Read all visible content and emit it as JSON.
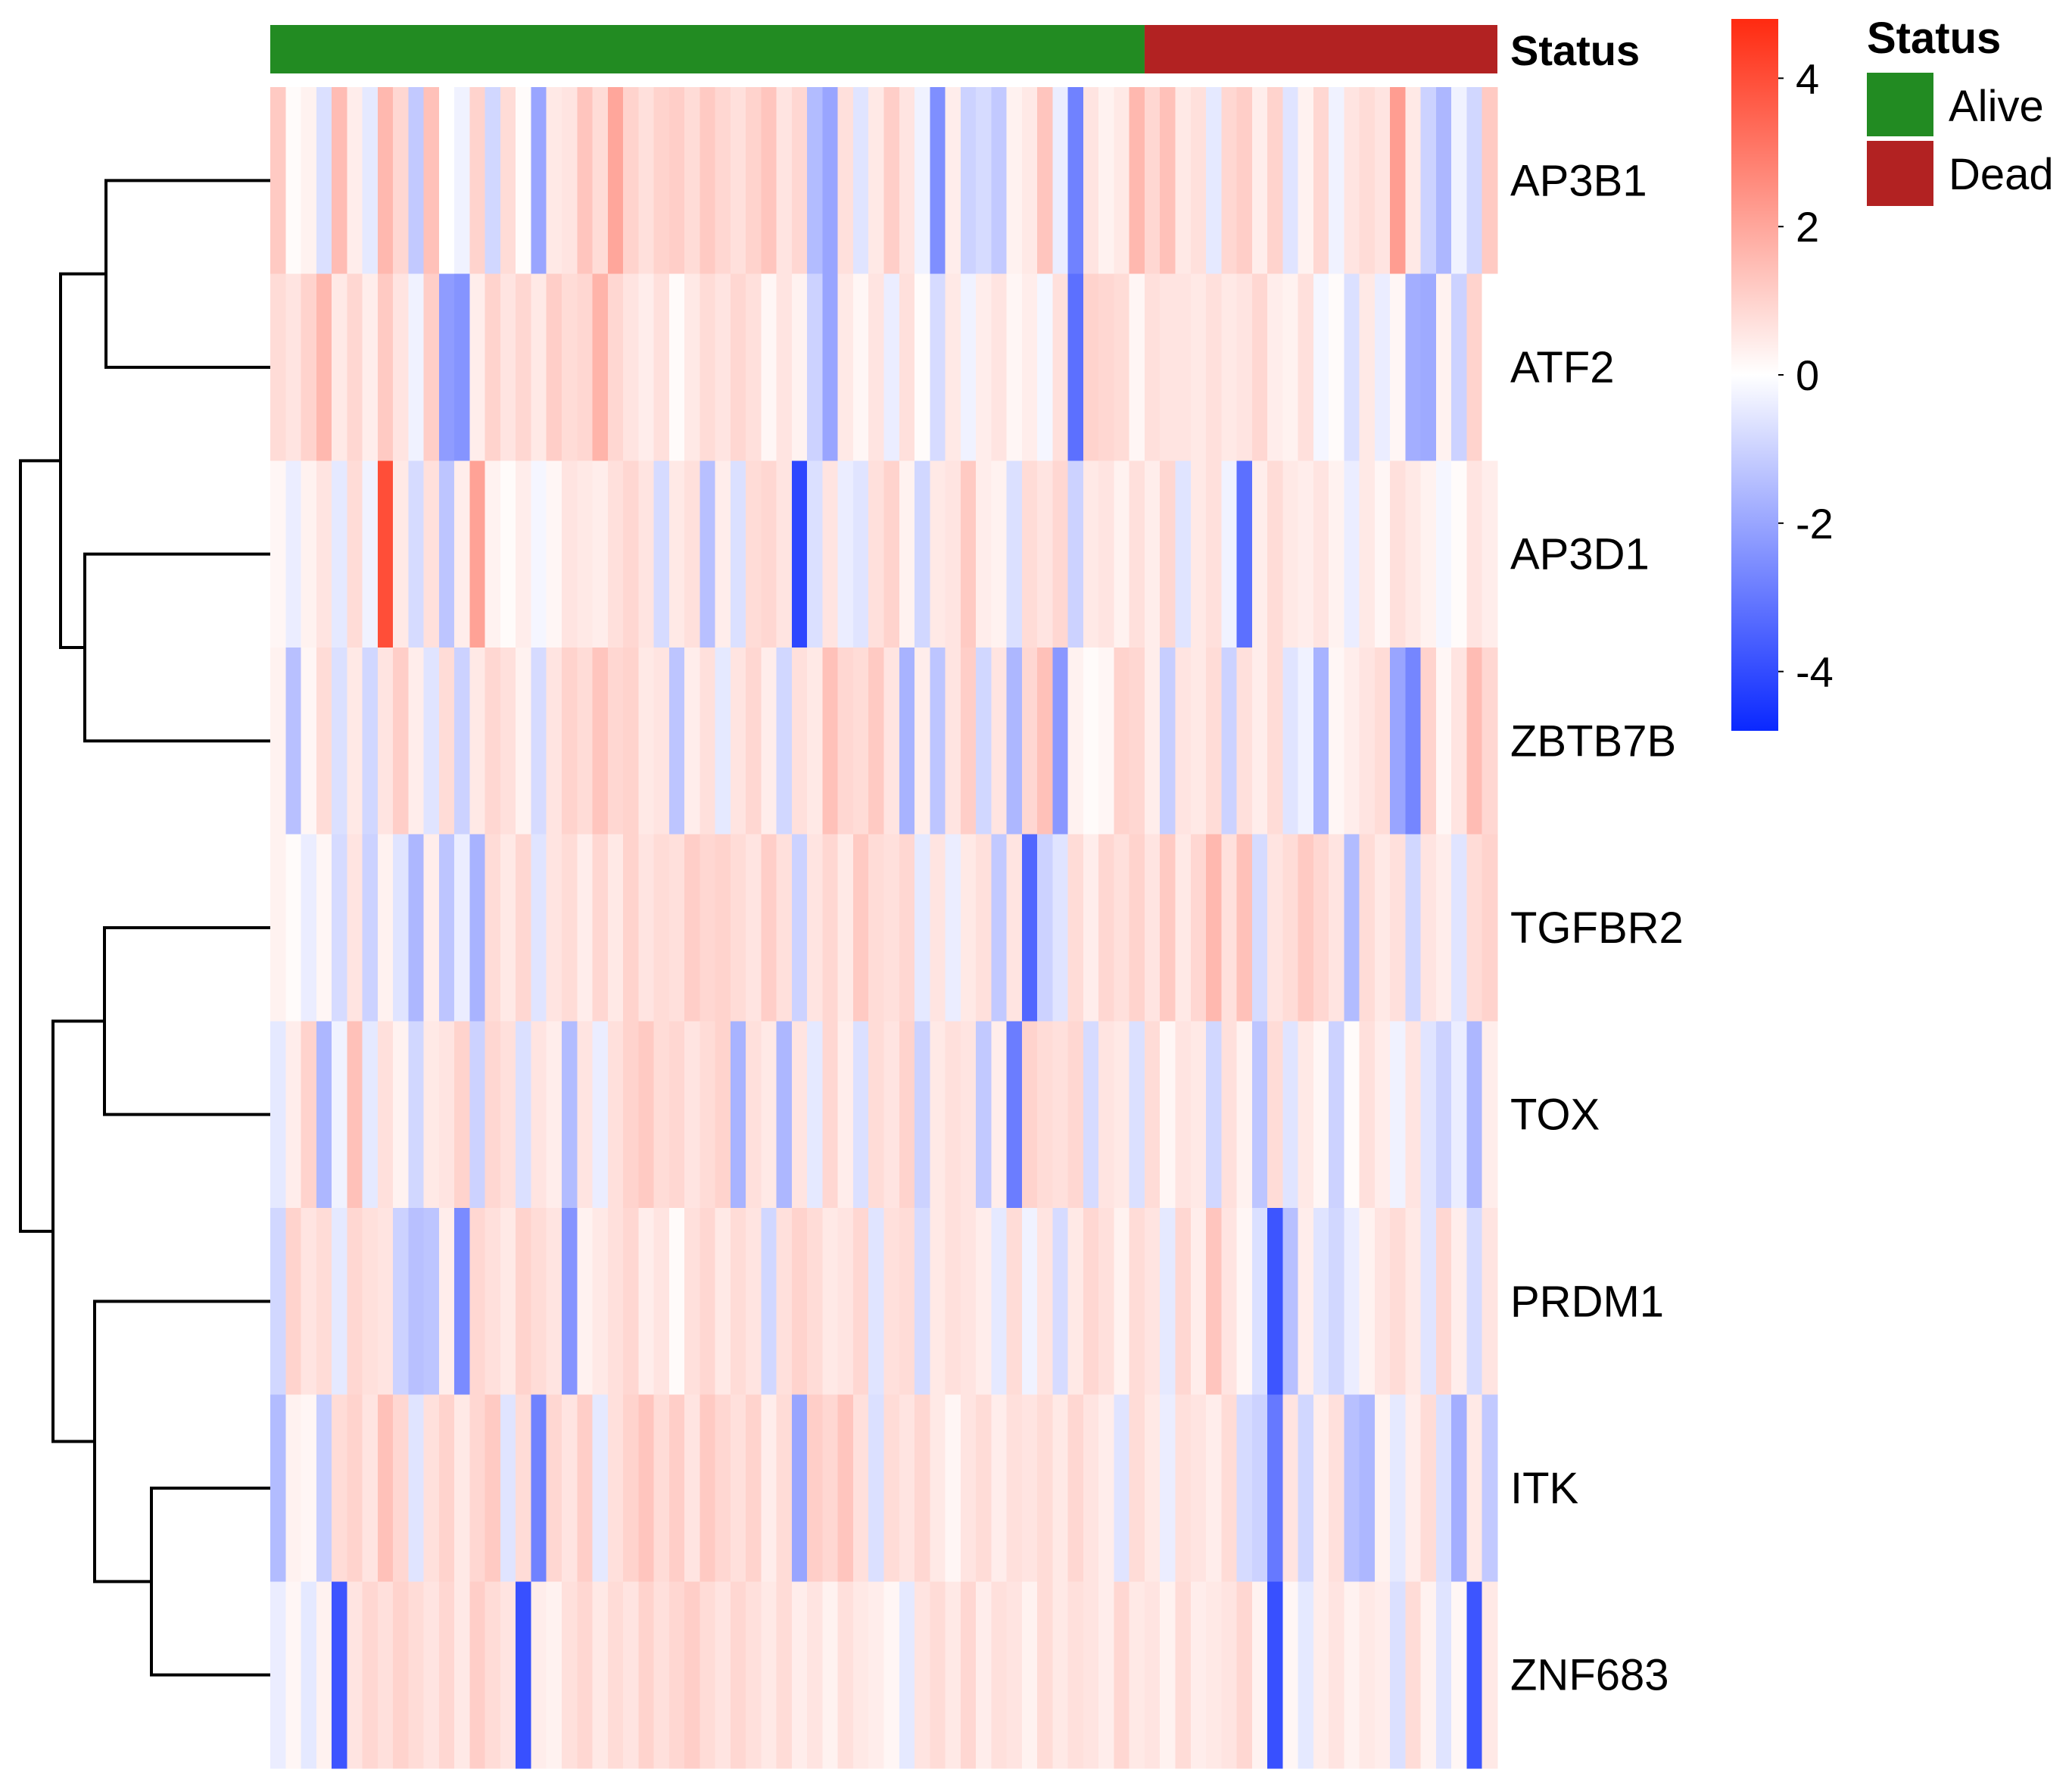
{
  "chart_data": {
    "type": "heatmap",
    "rows": [
      "AP3B1",
      "ATF2",
      "AP3D1",
      "ZBTB7B",
      "TGFBR2",
      "TOX",
      "PRDM1",
      "ITK",
      "ZNF683"
    ],
    "annotation": {
      "label": "Status",
      "groups": [
        {
          "name": "Alive",
          "count": 57,
          "color": "#228B22"
        },
        {
          "name": "Dead",
          "count": 23,
          "color": "#B22222"
        }
      ]
    },
    "legend": {
      "title": "Status",
      "entries": [
        {
          "label": "Alive",
          "color": "#228B22"
        },
        {
          "label": "Dead",
          "color": "#B22222"
        }
      ]
    },
    "colorbar": {
      "range": [
        -4.8,
        4.8
      ],
      "ticks": [
        "4",
        "2",
        "0",
        "-2",
        "-4"
      ],
      "tick_values": [
        4,
        2,
        0,
        -2,
        -4
      ],
      "low_color": "#0A28FF",
      "mid_color": "#FFFFFF",
      "high_color": "#FF2A10"
    },
    "dendrogram": {
      "clusters": [
        {
          "a": "AP3B1",
          "b": "ATF2"
        },
        {
          "a": "AP3D1",
          "b": "ZBTB7B"
        },
        {
          "a": "TGFBR2",
          "b": "TOX"
        },
        {
          "a": "ITK",
          "b": "ZNF683"
        },
        {
          "a": "PRDM1",
          "b": "ITK+ZNF683"
        },
        {
          "a": "AP3B1+ATF2",
          "b": "AP3D1+ZBTB7B"
        },
        {
          "a": "TGFBR2+TOX",
          "b": "PRDM1+ITK+ZNF683"
        },
        {
          "a": "top",
          "b": "bottom"
        }
      ]
    },
    "values": [
      [
        1.2,
        0.1,
        0.3,
        -0.7,
        1.5,
        0.4,
        -0.5,
        1.6,
        0.9,
        -1.2,
        1.4,
        0.0,
        -0.3,
        1.0,
        -0.9,
        0.8,
        0.1,
        -2.0,
        0.5,
        0.6,
        1.3,
        0.8,
        2.0,
        1.0,
        0.7,
        1.0,
        1.1,
        0.8,
        1.2,
        0.9,
        0.7,
        1.0,
        1.3,
        0.6,
        0.9,
        -1.5,
        -2.0,
        0.7,
        -0.6,
        0.5,
        1.1,
        0.6,
        -0.3,
        -2.5,
        0.4,
        -1.0,
        -0.8,
        -1.2,
        0.3,
        0.5,
        1.3,
        -0.4,
        -2.8,
        0.6,
        0.3,
        0.5,
        1.6,
        0.9,
        1.4,
        0.5,
        0.7,
        -0.5,
        0.9,
        1.1,
        0.4,
        1.0,
        -0.6,
        0.3,
        0.9,
        -0.3,
        0.6,
        0.8,
        0.6,
        2.2,
        0.5,
        -1.0,
        -1.6,
        -0.3,
        -0.9,
        1.2
      ],
      [
        0.8,
        0.6,
        1.0,
        1.6,
        0.5,
        0.9,
        0.4,
        1.2,
        0.6,
        -0.3,
        1.1,
        -2.2,
        -2.4,
        0.4,
        1.0,
        0.6,
        0.9,
        0.5,
        1.1,
        0.8,
        0.9,
        1.7,
        0.9,
        0.6,
        0.4,
        0.7,
        0.1,
        0.5,
        0.8,
        0.6,
        0.9,
        0.7,
        0.2,
        0.6,
        0.3,
        -1.0,
        -2.0,
        0.5,
        0.2,
        0.6,
        -0.4,
        0.7,
        0.1,
        -0.8,
        0.5,
        -0.3,
        0.4,
        0.6,
        0.2,
        0.4,
        -0.2,
        0.7,
        -3.2,
        1.0,
        0.9,
        0.8,
        0.2,
        0.7,
        0.6,
        0.6,
        0.5,
        0.7,
        0.5,
        0.6,
        0.9,
        0.4,
        0.3,
        0.7,
        -0.2,
        0.1,
        -0.7,
        0.5,
        -0.4,
        0.2,
        -1.8,
        -1.9,
        0.3,
        -1.0,
        1.0,
        0.0
      ],
      [
        0.2,
        -0.4,
        0.3,
        0.6,
        -0.5,
        0.8,
        -0.3,
        4.0,
        0.5,
        -0.8,
        0.7,
        -1.3,
        0.4,
        2.1,
        0.3,
        0.1,
        0.4,
        -0.2,
        0.2,
        0.6,
        0.5,
        0.4,
        0.7,
        0.9,
        0.6,
        -0.8,
        0.5,
        0.7,
        -1.4,
        0.4,
        -0.7,
        0.8,
        0.9,
        0.6,
        -4.1,
        -0.7,
        0.6,
        -0.4,
        -0.6,
        0.7,
        1.0,
        0.3,
        -0.9,
        0.5,
        0.6,
        1.2,
        0.4,
        0.3,
        -0.7,
        0.8,
        0.6,
        0.9,
        -1.0,
        0.5,
        0.6,
        0.3,
        0.7,
        0.4,
        0.9,
        -0.6,
        0.5,
        0.7,
        -0.3,
        -3.2,
        0.4,
        0.8,
        0.5,
        0.4,
        0.6,
        0.3,
        -0.4,
        0.5,
        0.2,
        0.7,
        0.5,
        0.3,
        -0.2,
        0.1,
        0.6,
        0.4
      ],
      [
        0.3,
        -1.4,
        0.2,
        0.8,
        -0.7,
        0.5,
        -0.9,
        0.6,
        1.1,
        0.4,
        -0.6,
        0.8,
        -1.0,
        0.5,
        0.9,
        0.7,
        0.3,
        -0.8,
        0.6,
        1.0,
        0.8,
        1.3,
        0.9,
        1.0,
        0.5,
        0.6,
        -1.3,
        0.4,
        0.7,
        -0.5,
        0.6,
        0.9,
        0.4,
        -0.9,
        0.7,
        0.5,
        1.4,
        0.9,
        0.8,
        1.2,
        0.6,
        -1.7,
        0.4,
        -1.3,
        0.6,
        1.1,
        -0.9,
        0.6,
        -1.6,
        0.9,
        1.4,
        -2.3,
        0.3,
        0.1,
        0.2,
        1.0,
        0.9,
        0.4,
        -1.1,
        0.6,
        0.5,
        0.8,
        -1.0,
        0.7,
        0.4,
        0.8,
        -0.6,
        -0.3,
        -1.7,
        0.2,
        0.4,
        0.6,
        0.8,
        -2.0,
        -2.7,
        1.0,
        0.2,
        0.6,
        1.5,
        0.9
      ],
      [
        0.3,
        0.1,
        -0.4,
        0.2,
        -0.8,
        0.6,
        -1.0,
        0.3,
        -0.6,
        -1.6,
        0.4,
        -1.3,
        -0.4,
        -1.7,
        0.8,
        0.5,
        0.9,
        -0.6,
        0.6,
        0.8,
        0.4,
        0.9,
        0.5,
        1.0,
        0.6,
        0.8,
        0.7,
        1.1,
        0.9,
        1.0,
        0.8,
        0.6,
        1.1,
        0.7,
        -1.0,
        0.6,
        0.9,
        0.5,
        1.2,
        0.8,
        0.7,
        0.9,
        -0.5,
        0.6,
        -0.4,
        0.5,
        0.7,
        -1.2,
        0.6,
        -3.4,
        -1.0,
        -0.6,
        0.8,
        0.4,
        0.9,
        0.7,
        1.0,
        0.6,
        1.2,
        0.5,
        0.9,
        1.6,
        0.7,
        1.4,
        -0.8,
        0.6,
        0.8,
        1.2,
        0.9,
        0.6,
        -1.5,
        0.8,
        0.5,
        0.7,
        -0.9,
        0.6,
        0.4,
        -0.6,
        0.8,
        1.0
      ],
      [
        -0.5,
        0.4,
        1.0,
        -1.6,
        -0.3,
        1.4,
        -0.5,
        0.7,
        0.3,
        -0.9,
        0.5,
        0.6,
        1.0,
        -1.0,
        0.9,
        0.7,
        -0.7,
        0.6,
        0.4,
        -1.5,
        0.6,
        -0.4,
        0.7,
        1.0,
        1.2,
        0.8,
        0.9,
        0.6,
        0.8,
        1.0,
        -1.7,
        0.7,
        0.5,
        -1.6,
        0.6,
        -0.5,
        0.9,
        0.4,
        -0.7,
        0.8,
        0.6,
        1.0,
        -1.0,
        0.5,
        0.7,
        0.6,
        -1.2,
        0.4,
        -2.9,
        1.0,
        0.8,
        0.7,
        0.9,
        -0.8,
        0.6,
        0.5,
        -0.7,
        0.8,
        0.2,
        0.6,
        0.5,
        -0.9,
        0.7,
        0.3,
        -1.3,
        0.8,
        -0.6,
        0.5,
        0.2,
        -1.0,
        0.1,
        0.7,
        0.4,
        -0.3,
        0.6,
        -0.6,
        -1.0,
        -0.4,
        -1.6,
        0.4
      ],
      [
        -0.9,
        1.0,
        0.6,
        0.8,
        -0.5,
        0.9,
        0.7,
        0.6,
        -1.0,
        -1.4,
        -1.3,
        0.4,
        -2.6,
        0.9,
        0.7,
        0.5,
        1.0,
        0.8,
        0.6,
        -2.4,
        0.3,
        0.5,
        0.7,
        0.9,
        0.4,
        0.6,
        0.1,
        0.7,
        0.9,
        0.5,
        0.8,
        0.6,
        -0.9,
        0.7,
        1.0,
        0.8,
        0.5,
        0.6,
        0.9,
        -0.6,
        0.7,
        0.8,
        -0.8,
        0.5,
        0.7,
        0.6,
        0.4,
        -0.5,
        0.8,
        -0.3,
        0.6,
        -0.8,
        0.5,
        0.9,
        0.7,
        0.3,
        0.8,
        0.6,
        -0.5,
        0.9,
        0.4,
        1.3,
        0.6,
        0.2,
        -0.7,
        -3.8,
        -1.4,
        0.4,
        -0.6,
        -0.9,
        -0.4,
        0.3,
        0.6,
        0.8,
        0.5,
        -0.6,
        0.9,
        0.4,
        -0.8,
        0.6
      ],
      [
        -1.5,
        0.3,
        0.2,
        -1.1,
        0.8,
        1.0,
        0.6,
        1.4,
        0.9,
        -0.6,
        0.7,
        1.0,
        0.5,
        0.9,
        1.2,
        -0.6,
        0.8,
        -2.8,
        0.9,
        0.6,
        1.1,
        -0.5,
        0.7,
        1.0,
        1.3,
        0.8,
        1.1,
        0.6,
        1.2,
        0.9,
        0.7,
        1.0,
        0.4,
        0.8,
        -2.0,
        1.1,
        0.9,
        1.3,
        0.7,
        -0.7,
        0.8,
        0.6,
        0.9,
        0.5,
        0.2,
        0.6,
        0.8,
        0.4,
        0.7,
        0.6,
        0.8,
        0.5,
        0.9,
        0.6,
        0.4,
        -0.6,
        0.8,
        0.5,
        -0.4,
        0.7,
        0.6,
        0.4,
        0.8,
        -0.8,
        -1.0,
        -3.0,
        0.6,
        -0.9,
        0.4,
        0.7,
        -1.4,
        -1.6,
        0.3,
        -0.5,
        0.4,
        0.8,
        -0.7,
        -1.8,
        0.5,
        -1.2
      ],
      [
        -0.4,
        0.2,
        -0.5,
        0.3,
        -3.8,
        0.6,
        0.9,
        0.7,
        1.0,
        0.8,
        0.6,
        0.9,
        0.5,
        1.1,
        0.8,
        0.6,
        -3.9,
        0.4,
        0.3,
        0.7,
        0.9,
        0.5,
        0.8,
        0.6,
        1.0,
        0.7,
        0.9,
        1.1,
        0.8,
        0.6,
        0.9,
        0.7,
        0.5,
        0.8,
        0.4,
        0.6,
        0.3,
        0.7,
        0.5,
        0.4,
        0.2,
        -0.5,
        0.6,
        0.8,
        0.5,
        0.9,
        0.4,
        0.7,
        0.6,
        0.3,
        0.8,
        0.5,
        0.7,
        0.6,
        0.4,
        0.9,
        0.5,
        0.6,
        0.3,
        0.8,
        0.4,
        0.5,
        0.6,
        0.9,
        0.3,
        -3.9,
        0.2,
        -0.5,
        0.4,
        0.6,
        0.3,
        0.5,
        0.4,
        -0.7,
        0.8,
        0.3,
        -0.6,
        0.2,
        -3.8,
        0.5
      ]
    ]
  }
}
